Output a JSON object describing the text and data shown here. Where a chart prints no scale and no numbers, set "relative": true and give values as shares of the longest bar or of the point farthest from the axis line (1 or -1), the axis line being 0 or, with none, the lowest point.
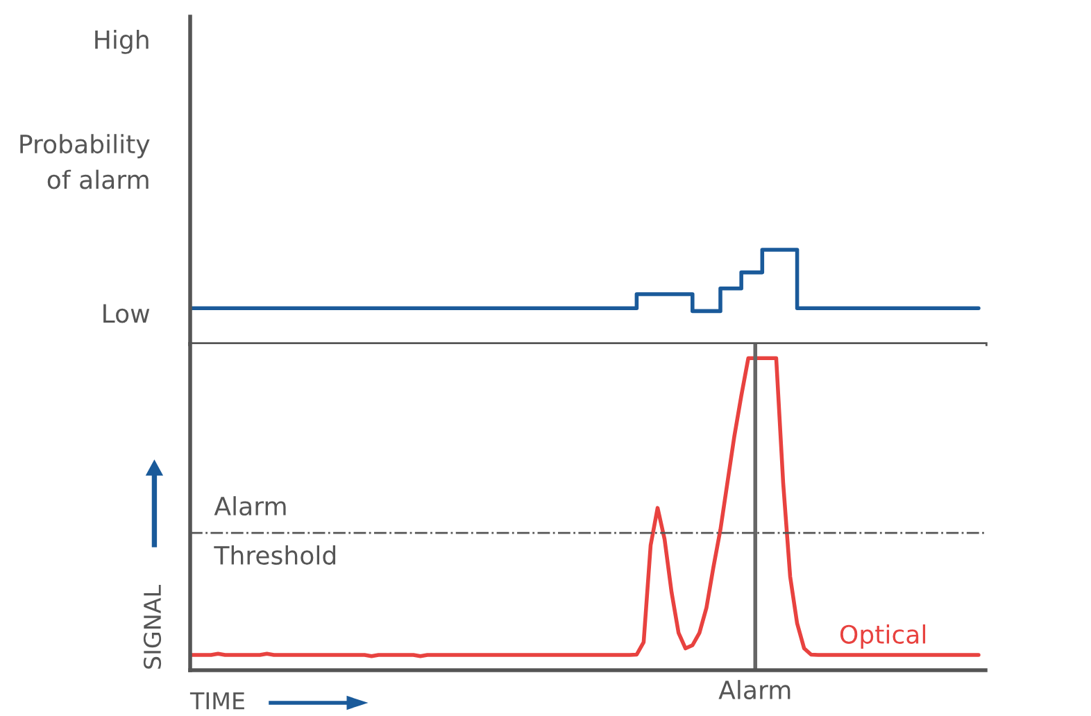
{
  "chart_data": [
    {
      "type": "step",
      "ylabel": "Probability of alarm",
      "categories": [
        null,
        null,
        null,
        null,
        null,
        null,
        null,
        null,
        null,
        null,
        null,
        null,
        null,
        null,
        null,
        null,
        null,
        null,
        null,
        null,
        null,
        null,
        null,
        null,
        null,
        null,
        null,
        null,
        null,
        null,
        null,
        null,
        null,
        null,
        null,
        null,
        null,
        null,
        null,
        null,
        null,
        null,
        null,
        null,
        null,
        null,
        null,
        null,
        null,
        null,
        null,
        null,
        null,
        null,
        null,
        null,
        null,
        null,
        null,
        null,
        null,
        null,
        null,
        null,
        null,
        null,
        null,
        null,
        null,
        null,
        null,
        null,
        null,
        null,
        null,
        null,
        null,
        null,
        null,
        null,
        null,
        null,
        null,
        null,
        null,
        null,
        null,
        null,
        null,
        null,
        null,
        null,
        null,
        null,
        null,
        null,
        null,
        null,
        null,
        null,
        null,
        null,
        null,
        null,
        null,
        null,
        null,
        null,
        null,
        null,
        null,
        null,
        null,
        null,
        null
      ],
      "relative": true,
      "annotations": [
        "High",
        "Low"
      ],
      "grid": false,
      "legend": false,
      "series": [
        {
          "color": "#1a5a9a",
          "values": [
            0.38,
            0.38,
            0.38,
            0.38,
            0.38,
            0.38,
            0.38,
            0.38,
            0.38,
            0.38,
            0.38,
            0.38,
            0.38,
            0.38,
            0.38,
            0.38,
            0.38,
            0.38,
            0.38,
            0.38,
            0.38,
            0.38,
            0.38,
            0.38,
            0.38,
            0.38,
            0.38,
            0.38,
            0.38,
            0.38,
            0.38,
            0.38,
            0.38,
            0.38,
            0.38,
            0.38,
            0.38,
            0.38,
            0.38,
            0.38,
            0.38,
            0.38,
            0.38,
            0.38,
            0.38,
            0.38,
            0.38,
            0.38,
            0.38,
            0.38,
            0.38,
            0.38,
            0.38,
            0.38,
            0.38,
            0.38,
            0.38,
            0.38,
            0.38,
            0.38,
            0.38,
            0.38,
            0.38,
            0.38,
            0.53,
            0.53,
            0.53,
            0.53,
            0.53,
            0.53,
            0.53,
            0.53,
            0.35,
            0.35,
            0.35,
            0.35,
            0.59,
            0.59,
            0.59,
            0.76,
            0.76,
            0.76,
            1.0,
            1.0,
            1.0,
            1.0,
            1.0,
            0.38,
            0.38,
            0.38,
            0.38,
            0.38,
            0.38,
            0.38,
            0.38,
            0.38,
            0.38,
            0.38,
            0.38,
            0.38,
            0.38,
            0.38,
            0.38,
            0.38,
            0.38,
            0.38,
            0.38,
            0.38,
            0.38,
            0.38,
            0.38,
            0.38,
            0.38,
            null,
            null
          ]
        }
      ]
    },
    {
      "type": "line",
      "relative": true,
      "xlabel": "TIME",
      "ylabel": "SIGNAL",
      "categories": [
        null,
        null,
        null,
        null,
        null,
        null,
        null,
        null,
        null,
        null,
        null,
        null,
        null,
        null,
        null,
        null,
        null,
        null,
        null,
        null,
        null,
        null,
        null,
        null,
        null,
        null,
        null,
        null,
        null,
        null,
        null,
        null,
        null,
        null,
        null,
        null,
        null,
        null,
        null,
        null,
        null,
        null,
        null,
        null,
        null,
        null,
        null,
        null,
        null,
        null,
        null,
        null,
        null,
        null,
        null,
        null,
        null,
        null,
        null,
        null,
        null,
        null,
        null,
        null,
        null,
        null,
        null,
        null,
        null,
        null,
        null,
        null,
        null,
        null,
        null,
        null,
        null,
        null,
        null,
        null,
        null,
        null,
        null,
        null,
        null,
        null,
        null,
        null,
        null,
        null,
        null,
        null,
        null,
        null,
        null,
        null,
        null,
        null,
        null,
        null,
        null,
        null,
        null,
        null,
        null,
        null,
        null,
        null,
        null,
        null,
        null,
        null,
        null,
        null,
        null
      ],
      "grid": false,
      "legend": false,
      "annotations": [
        "Alarm"
      ],
      "ref_lines": [
        {
          "axis": "y",
          "value": 0.44,
          "label": "Alarm Threshold",
          "color": "#555555",
          "line_style": "dashdot"
        }
      ],
      "series": [
        {
          "name": "Optical",
          "color": "#e8423f",
          "values": [
            0.049,
            0.049,
            0.049,
            0.049,
            0.053,
            0.049,
            0.049,
            0.049,
            0.049,
            0.049,
            0.049,
            0.053,
            0.049,
            0.049,
            0.049,
            0.049,
            0.049,
            0.049,
            0.049,
            0.049,
            0.049,
            0.049,
            0.049,
            0.049,
            0.049,
            0.049,
            0.045,
            0.049,
            0.049,
            0.049,
            0.049,
            0.049,
            0.049,
            0.045,
            0.049,
            0.049,
            0.049,
            0.049,
            0.049,
            0.049,
            0.049,
            0.049,
            0.049,
            0.049,
            0.049,
            0.049,
            0.049,
            0.049,
            0.049,
            0.049,
            0.049,
            0.049,
            0.049,
            0.049,
            0.049,
            0.049,
            0.049,
            0.049,
            0.049,
            0.049,
            0.049,
            0.049,
            0.049,
            0.049,
            0.05,
            0.09,
            0.4,
            0.52,
            0.42,
            0.25,
            0.12,
            0.07,
            0.08,
            0.12,
            0.2,
            0.33,
            0.45,
            0.6,
            0.75,
            0.88,
            1.0,
            1.0,
            1.0,
            1.0,
            1.0,
            0.6,
            0.3,
            0.15,
            0.07,
            0.05,
            0.049,
            0.049,
            0.049,
            0.049,
            0.049,
            0.049,
            0.049,
            0.049,
            0.049,
            0.049,
            0.049,
            0.049,
            0.049,
            0.049,
            0.049,
            0.049,
            0.049,
            0.049,
            0.049,
            0.049,
            0.049,
            0.049,
            0.049,
            0.049,
            null
          ]
        }
      ]
    }
  ]
}
